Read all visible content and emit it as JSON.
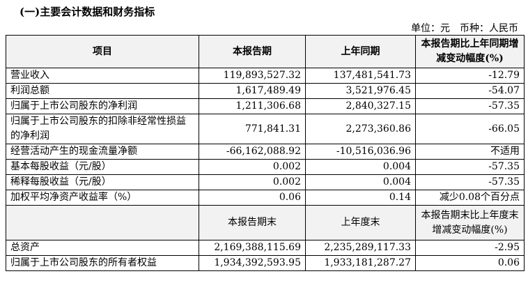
{
  "heading": "(一)主要会计数据和财务指标",
  "unit_note": "单位：元　币种：人民币",
  "table": {
    "header": [
      "项目",
      "本报告期",
      "上年同期",
      "本报告期比上年同期增减变动幅度(%)"
    ],
    "rows": [
      [
        "营业收入",
        "119,893,527.32",
        "137,481,541.73",
        "-12.79"
      ],
      [
        "利润总额",
        "1,617,489.49",
        "3,521,976.45",
        "-54.07"
      ],
      [
        "归属于上市公司股东的净利润",
        "1,211,306.68",
        "2,840,327.15",
        "-57.35"
      ],
      [
        "归属于上市公司股东的扣除非经常性损益的净利润",
        "771,841.31",
        "2,273,360.86",
        "-66.05"
      ],
      [
        "经营活动产生的现金流量净额",
        "-66,162,088.92",
        "-10,516,036.96",
        "不适用"
      ],
      [
        "基本每股收益（元/股）",
        "0.002",
        "0.004",
        "-57.35"
      ],
      [
        "稀释每股收益（元/股）",
        "0.002",
        "0.004",
        "-57.35"
      ],
      [
        "加权平均净资产收益率（%）",
        "0.06",
        "0.14",
        "减少0.08个百分点"
      ]
    ],
    "subheader": [
      "本报告期末",
      "上年度末",
      "本报告期末比上年度末增减变动幅度(%)"
    ],
    "rows2": [
      [
        "总资产",
        "2,169,388,115.69",
        "2,235,289,117.33",
        "-2.95"
      ],
      [
        "归属于上市公司股东的所有者权益",
        "1,934,392,593.95",
        "1,933,181,287.27",
        "0.06"
      ]
    ]
  }
}
